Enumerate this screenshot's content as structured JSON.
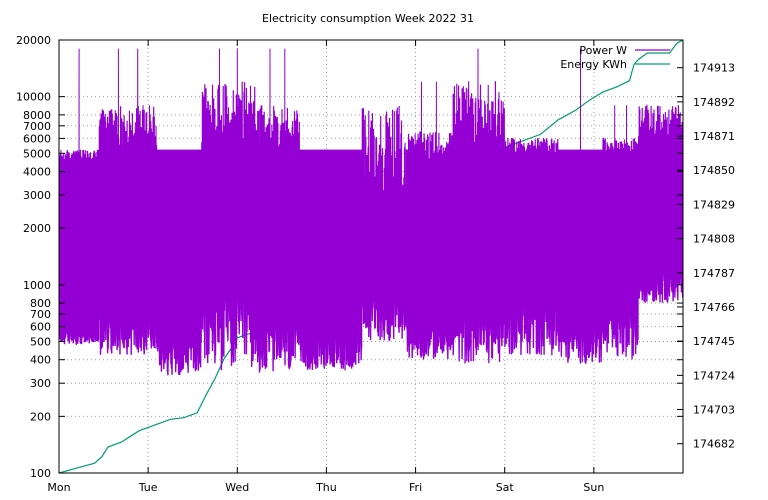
{
  "chart_data": {
    "type": "line",
    "title": "Electricity consumption Week 2022 31",
    "xlabel": "",
    "ylabel": "",
    "y2label": "",
    "x_categories": [
      "Mon",
      "Tue",
      "Wed",
      "Thu",
      "Fri",
      "Sat",
      "Sun"
    ],
    "x_range_days": [
      0,
      7
    ],
    "y_scale": "log",
    "ylim": [
      100,
      20000
    ],
    "y_ticks": [
      100,
      200,
      300,
      400,
      500,
      600,
      700,
      800,
      1000,
      2000,
      3000,
      4000,
      5000,
      6000,
      7000,
      8000,
      10000,
      20000
    ],
    "y_tick_labels": [
      "100",
      "200",
      "300",
      "400",
      "500",
      "600",
      "700",
      "800",
      "1000",
      "2000",
      "3000",
      "4000",
      "5000",
      "6000",
      "7000",
      "8000",
      "10000",
      "20000"
    ],
    "y2lim": [
      174664,
      174930
    ],
    "y2_ticks": [
      174682,
      174703,
      174724,
      174745,
      174766,
      174787,
      174808,
      174829,
      174850,
      174871,
      174892,
      174913
    ],
    "y2_tick_labels": [
      "174682",
      "174703",
      "174724",
      "174745",
      "174766",
      "174787",
      "174808",
      "174829",
      "174850",
      "174871",
      "174892",
      "174913"
    ],
    "grid": true,
    "legend_position": "top-right",
    "series": [
      {
        "name": "Power W",
        "axis": "left",
        "color": "#9400d3",
        "segments": [
          {
            "x": [
              0.0,
              0.45
            ],
            "base": [
              480,
              560
            ],
            "peak": [
              4500,
              5200
            ],
            "spikes": [
              18000
            ]
          },
          {
            "x": [
              0.45,
              1.1
            ],
            "base": [
              420,
              700
            ],
            "peak": [
              5200,
              9000
            ],
            "spikes": [
              18000,
              18000
            ]
          },
          {
            "x": [
              1.1,
              1.6
            ],
            "base": [
              330,
              520
            ],
            "peak": [
              5200,
              5200
            ]
          },
          {
            "x": [
              1.6,
              2.2
            ],
            "base": [
              350,
              900
            ],
            "peak": [
              5200,
              12000
            ],
            "spikes": [
              18000,
              18000
            ]
          },
          {
            "x": [
              2.2,
              2.7
            ],
            "base": [
              340,
              600
            ],
            "peak": [
              5200,
              9000
            ],
            "spikes": [
              18000,
              18000
            ]
          },
          {
            "x": [
              2.7,
              3.4
            ],
            "base": [
              350,
              520
            ],
            "peak": [
              5200,
              5200
            ]
          },
          {
            "x": [
              3.4,
              3.9
            ],
            "base": [
              500,
              900
            ],
            "peak": [
              3000,
              9000
            ]
          },
          {
            "x": [
              3.9,
              4.4
            ],
            "base": [
              400,
              600
            ],
            "peak": [
              4500,
              6500
            ],
            "spikes": [
              12000,
              12000
            ]
          },
          {
            "x": [
              4.4,
              5.0
            ],
            "base": [
              380,
              700
            ],
            "peak": [
              5200,
              12000
            ],
            "spikes": [
              18000
            ]
          },
          {
            "x": [
              5.0,
              5.6
            ],
            "base": [
              420,
              800
            ],
            "peak": [
              5000,
              6000
            ]
          },
          {
            "x": [
              5.6,
              6.1
            ],
            "base": [
              380,
              600
            ],
            "peak": [
              5200,
              5200
            ],
            "spikes": [
              18000
            ]
          },
          {
            "x": [
              6.1,
              6.5
            ],
            "base": [
              400,
              700
            ],
            "peak": [
              5000,
              6000
            ],
            "spikes": [
              9000,
              9000
            ]
          },
          {
            "x": [
              6.5,
              7.0
            ],
            "base": [
              800,
              1200
            ],
            "peak": [
              6000,
              9000
            ]
          }
        ]
      },
      {
        "name": "Energy KWh",
        "axis": "right",
        "color": "#009e73",
        "x": [
          0.0,
          0.2,
          0.4,
          0.48,
          0.55,
          0.7,
          0.9,
          1.1,
          1.25,
          1.4,
          1.55,
          1.65,
          1.75,
          1.85,
          1.95,
          2.0,
          2.1,
          2.25,
          2.35,
          2.45,
          2.55,
          2.65,
          2.75,
          2.85,
          3.0,
          3.2,
          3.4,
          3.6,
          3.8,
          4.0,
          4.2,
          4.4,
          4.55,
          4.7,
          4.85,
          5.0,
          5.2,
          5.4,
          5.6,
          5.8,
          5.95,
          6.1,
          6.25,
          6.4,
          6.45,
          6.5,
          6.6,
          6.75,
          6.85,
          6.93,
          7.0
        ],
        "y": [
          174664,
          174667,
          174670,
          174674,
          174680,
          174683,
          174690,
          174694,
          174697,
          174698,
          174701,
          174712,
          174722,
          174734,
          174742,
          174747,
          174749,
          174751,
          174754,
          174765,
          174772,
          174775,
          174777,
          174781,
          174784,
          174788,
          174795,
          174799,
          174804,
          174820,
          174822,
          174827,
          174837,
          174847,
          174857,
          174864,
          174868,
          174872,
          174881,
          174887,
          174893,
          174898,
          174901,
          174905,
          174915,
          174918,
          174922,
          174922,
          174922,
          174928,
          174930
        ]
      }
    ]
  }
}
